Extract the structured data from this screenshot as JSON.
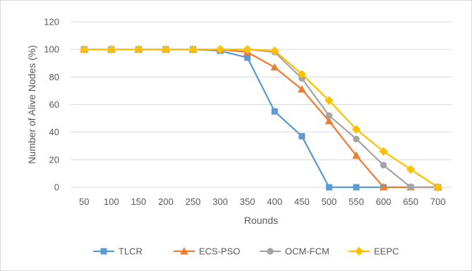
{
  "chart_data": {
    "type": "line",
    "title": "",
    "xlabel": "Rounds",
    "ylabel": "Number of Alive Nodes (%)",
    "categories": [
      "50",
      "100",
      "150",
      "200",
      "250",
      "300",
      "350",
      "400",
      "450",
      "500",
      "550",
      "600",
      "650",
      "700"
    ],
    "ylim": [
      0,
      120
    ],
    "yticks": [
      "0",
      "20",
      "40",
      "60",
      "80",
      "100",
      "120"
    ],
    "grid": true,
    "legend_position": "bottom",
    "series": [
      {
        "name": "TLCR",
        "color": "#5b9bd5",
        "marker": "square",
        "values": [
          100,
          100,
          100,
          100,
          100,
          99,
          94,
          55,
          37,
          0,
          0,
          0,
          0,
          0
        ]
      },
      {
        "name": "ECS-PSO",
        "color": "#ed7d31",
        "marker": "triangle",
        "values": [
          100,
          100,
          100,
          100,
          100,
          100,
          98,
          87,
          71,
          48,
          23,
          0,
          0,
          0
        ]
      },
      {
        "name": "OCM-FCM",
        "color": "#a5a5a5",
        "marker": "circle",
        "values": [
          100,
          100,
          100,
          100,
          100,
          100,
          100,
          98,
          79,
          52,
          35,
          16,
          0,
          0
        ]
      },
      {
        "name": "EEPC",
        "color": "#ffc000",
        "marker": "diamond",
        "values": [
          100,
          100,
          100,
          100,
          100,
          100,
          100,
          99,
          82,
          63,
          42,
          26,
          13,
          0
        ]
      }
    ]
  }
}
